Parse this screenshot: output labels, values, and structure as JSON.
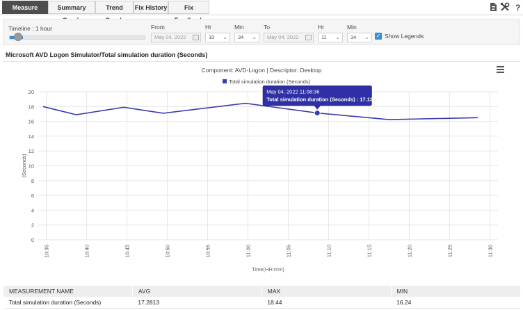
{
  "tabs": [
    {
      "label": "Measure Graph",
      "active": true
    },
    {
      "label": "Summary Graph",
      "active": false
    },
    {
      "label": "Trend Graph",
      "active": false
    },
    {
      "label": "Fix History",
      "active": false
    },
    {
      "label": "Fix Feedback",
      "active": false
    }
  ],
  "toolbar_icons": [
    "document-icon",
    "tools-icon",
    "help-icon"
  ],
  "controls": {
    "timeline_label": "Timeline : 1 hour",
    "timeline_fraction": 0.1,
    "from_label": "From",
    "from_date": "May 04, 2022",
    "from_hr_label": "Hr",
    "from_hr": "10",
    "from_min_label": "Min",
    "from_min": "34",
    "to_label": "To",
    "to_date": "May 04, 2022",
    "to_hr_label": "Hr",
    "to_hr": "11",
    "to_min_label": "Min",
    "to_min": "34",
    "show_legends_label": "Show Legends",
    "show_legends_checked": true
  },
  "section_title": "Microsoft AVD Logon Simulator/Total simulation duration (Seconds)",
  "colors": {
    "series": "#3b3bb0",
    "accent": "#3a8fd3",
    "tooltip_bg": "#2f2fa6"
  },
  "chart_data": {
    "type": "line",
    "title": "Component: AVD-Logon | Descriptor: Desktop",
    "xlabel": "Time(HH:mm)",
    "ylabel": "(Seconds)",
    "ylim": [
      0,
      20
    ],
    "yticks": [
      0,
      2,
      4,
      6,
      8,
      10,
      12,
      14,
      16,
      18,
      20
    ],
    "xticks": [
      "10:35",
      "10:40",
      "10:45",
      "10:50",
      "10:55",
      "11:00",
      "11:05",
      "11:10",
      "11:15",
      "11:20",
      "11:25",
      "11:30"
    ],
    "xtick_minutes": [
      35,
      40,
      45,
      50,
      55,
      60,
      65,
      70,
      75,
      80,
      85,
      90
    ],
    "xlim_minutes": [
      34,
      91
    ],
    "grid": true,
    "legend_position": "top",
    "series": [
      {
        "name": "Total simulation duration (Seconds)",
        "x_minutes": [
          34.6,
          38.7,
          44.6,
          49.5,
          59.7,
          68.6,
          77.5,
          88.5
        ],
        "x": [
          "10:34:36",
          "10:38:42",
          "10:44:36",
          "10:49:30",
          "10:59:42",
          "11:08:36",
          "11:17:30",
          "11:28:30"
        ],
        "y": [
          18.0,
          16.9,
          17.9,
          17.1,
          18.44,
          17.13,
          16.24,
          16.5
        ]
      }
    ],
    "tooltip": {
      "point_index": 5,
      "line1": "May 04, 2022 11:08:36",
      "line2": "Total simulation duration (Seconds) : 17.1300"
    }
  },
  "table": {
    "headers": [
      "MEASUREMENT NAME",
      "AVG",
      "MAX",
      "MIN"
    ],
    "rows": [
      [
        "Total simulation duration (Seconds)",
        "17.2813",
        "18.44",
        "16.24"
      ]
    ]
  }
}
